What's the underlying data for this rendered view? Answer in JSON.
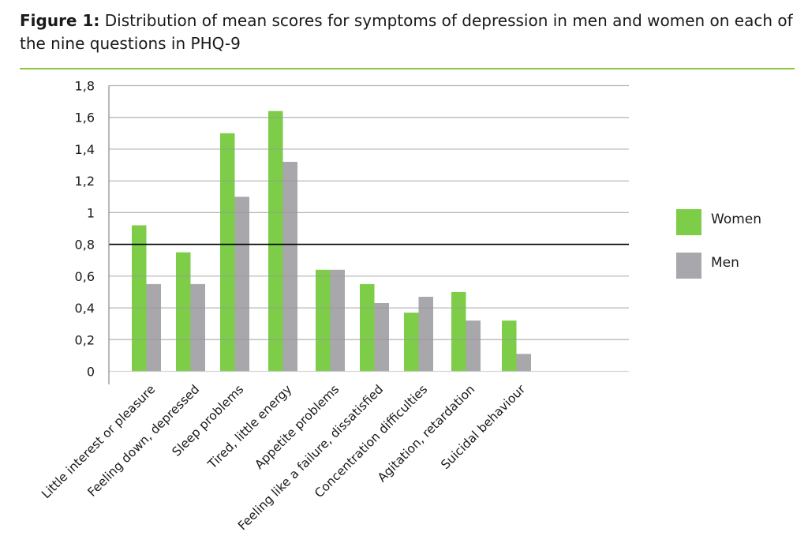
{
  "figure": {
    "label": "Figure 1:",
    "caption": "Distribution of mean scores for symptoms of depression in men and women on each of the nine questions in PHQ-9"
  },
  "colors": {
    "women": "#7dcd48",
    "men": "#a7a7ac",
    "rule": "#8cc63f",
    "reference_line": "#000000",
    "grid": "#9a9a9a"
  },
  "chart_data": {
    "type": "bar",
    "title": "",
    "xlabel": "",
    "ylabel": "",
    "ylim": [
      0,
      1.8
    ],
    "yticks": [
      "0",
      "0,2",
      "0,4",
      "0,6",
      "0,8",
      "1",
      "1,2",
      "1,4",
      "1,6",
      "1,8"
    ],
    "grid": true,
    "legend_position": "right",
    "reference_line": 0.8,
    "categories": [
      "Little interest or pleasure",
      "Feeling down, depressed",
      "Sleep problems",
      "Tired, little energy",
      "Appetite problems",
      "Feeling like a failure, dissatisfied",
      "Concentration difficulties",
      "Agitation, retardation",
      "Suicidal behaviour"
    ],
    "series": [
      {
        "name": "Women",
        "values": [
          0.92,
          0.75,
          1.5,
          1.64,
          0.64,
          0.55,
          0.37,
          0.5,
          0.32
        ]
      },
      {
        "name": "Men",
        "values": [
          0.55,
          0.55,
          1.1,
          1.32,
          0.64,
          0.43,
          0.47,
          0.32,
          0.11
        ]
      }
    ]
  }
}
